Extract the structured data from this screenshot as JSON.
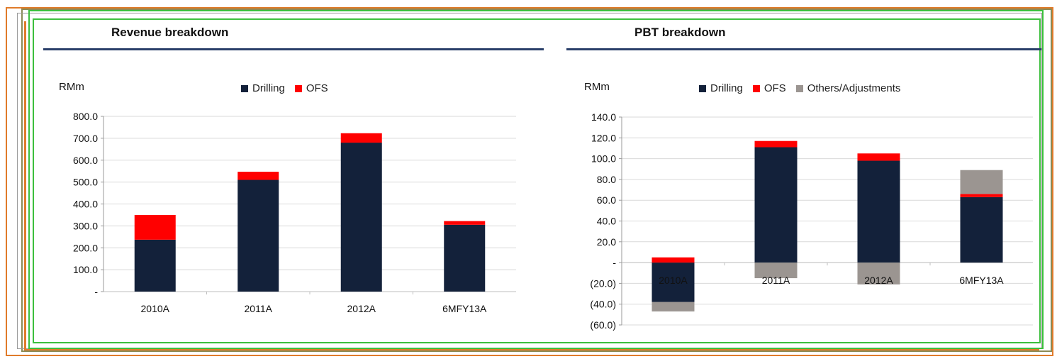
{
  "colors": {
    "drilling": "#13213a",
    "ofs": "#ff0000",
    "others": "#9b9591",
    "grid": "#d9d9d9",
    "title_rule": "#2a3f6a"
  },
  "chart_data": [
    {
      "type": "bar",
      "stacked": true,
      "title": "Revenue breakdown",
      "ylabel": "RMm",
      "categories": [
        "2010A",
        "2011A",
        "2012A",
        "6MFY13A"
      ],
      "y_ticks": [
        "-",
        "100.0",
        "200.0",
        "300.0",
        "400.0",
        "500.0",
        "600.0",
        "700.0",
        "800.0"
      ],
      "ylim": [
        0,
        800
      ],
      "grid": true,
      "legend_position": "top",
      "series": [
        {
          "name": "Drilling",
          "values": [
            237,
            510,
            680,
            305
          ]
        },
        {
          "name": "OFS",
          "values": [
            113,
            37,
            43,
            17
          ]
        }
      ]
    },
    {
      "type": "bar",
      "stacked": true,
      "title": "PBT breakdown",
      "ylabel": "RMm",
      "categories": [
        "2010A",
        "2011A",
        "2012A",
        "6MFY13A"
      ],
      "y_ticks": [
        "(60.0)",
        "(40.0)",
        "(20.0)",
        "-",
        "20.0",
        "40.0",
        "60.0",
        "80.0",
        "100.0",
        "120.0",
        "140.0"
      ],
      "ylim": [
        -60,
        140
      ],
      "grid": true,
      "legend_position": "top",
      "series": [
        {
          "name": "Drilling",
          "values": [
            -38,
            111,
            98,
            63
          ]
        },
        {
          "name": "OFS",
          "values": [
            5,
            6,
            7,
            3
          ]
        },
        {
          "name": "Others/Adjustments",
          "values": [
            -9,
            -15,
            -21,
            23
          ]
        }
      ]
    }
  ]
}
